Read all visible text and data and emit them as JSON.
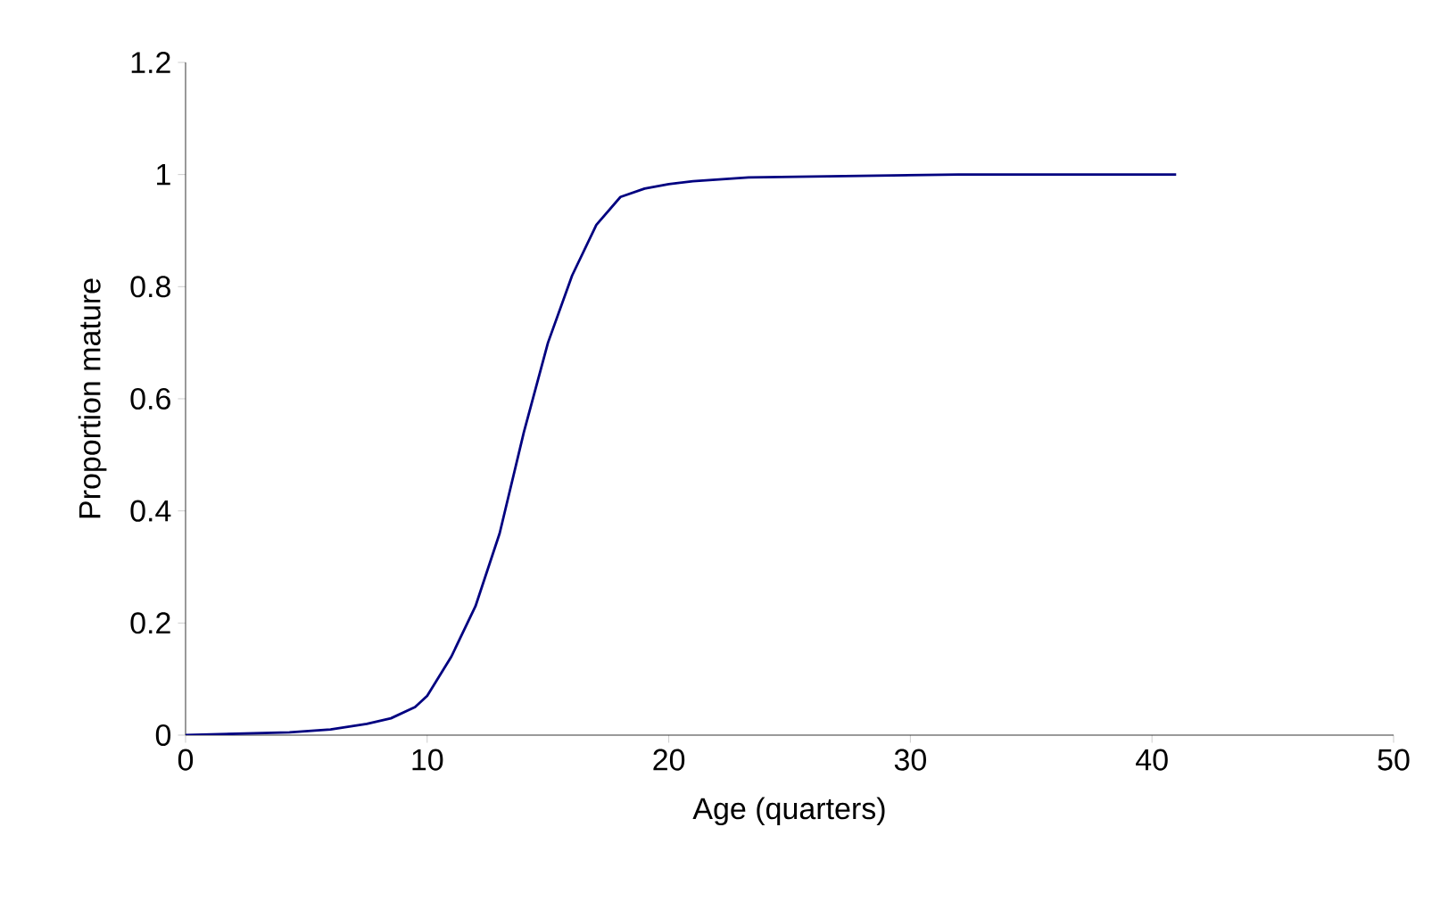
{
  "chart_data": {
    "type": "line",
    "xlabel": "Age (quarters)",
    "ylabel": "Proportion mature",
    "x": [
      0,
      4.3,
      6,
      7.5,
      8.5,
      9.5,
      10,
      11,
      12,
      13,
      14,
      15,
      16,
      17,
      18,
      19,
      20,
      21,
      23.3,
      32,
      41
    ],
    "series": [
      {
        "color": "#000080",
        "values": [
          0,
          0.005,
          0.01,
          0.02,
          0.03,
          0.05,
          0.07,
          0.14,
          0.23,
          0.36,
          0.54,
          0.7,
          0.82,
          0.91,
          0.96,
          0.975,
          0.983,
          0.988,
          0.995,
          1.0,
          1.0
        ]
      }
    ],
    "xlim": [
      0,
      50
    ],
    "ylim": [
      0,
      1.2
    ],
    "xticks": [
      0,
      10,
      20,
      30,
      40,
      50
    ],
    "yticks": [
      0,
      0.2,
      0.4,
      0.6,
      0.8,
      1,
      1.2
    ],
    "grid": false,
    "marker": "none",
    "line_style": "solid"
  }
}
